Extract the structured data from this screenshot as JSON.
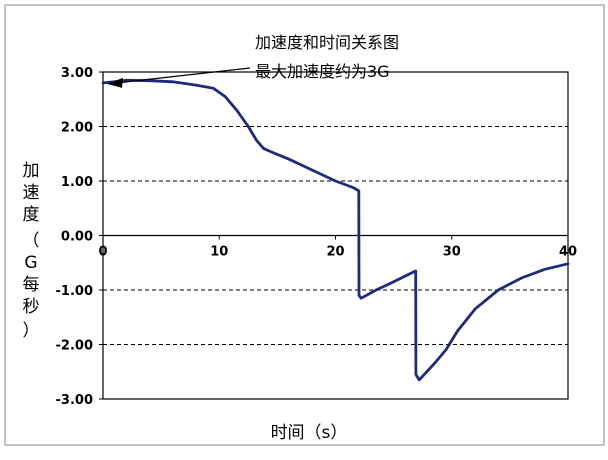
{
  "chart_data": {
    "type": "line",
    "title": "加速度和时间关系图",
    "annotations": [
      {
        "text": "最大加速度约为3G",
        "x": 0,
        "y": 2.8
      }
    ],
    "xlabel": "时间（s）",
    "ylabel_chars": [
      "加",
      "速",
      "度",
      "（",
      "G",
      "每",
      "秒",
      "）"
    ],
    "xlim": [
      0,
      40
    ],
    "ylim": [
      -3,
      3
    ],
    "xticks": [
      0,
      10,
      20,
      30,
      40
    ],
    "yticks": [
      3,
      2,
      1,
      0,
      -1,
      -2,
      -3
    ],
    "ytick_labels": [
      "3.00",
      "2.00",
      "1.00",
      "0.00",
      "-1.00",
      "-2.00",
      "-3.00"
    ],
    "gridlines": "horizontal-dashed",
    "legend": "none",
    "colors": {
      "line": "#1f2a7a",
      "grid": "#000000",
      "frame": "#000000"
    },
    "series": [
      {
        "x": [
          0,
          1,
          2,
          4,
          6,
          8,
          9.5,
          10.5,
          11.5,
          12.5,
          13.2,
          13.8,
          14.5,
          16,
          18,
          20,
          21.5,
          22,
          22.02,
          22.2,
          23.5,
          25,
          26.9,
          26.92,
          27.2,
          28.5,
          29.5,
          30.5,
          32,
          34,
          36,
          38,
          40
        ],
        "y": [
          2.8,
          2.82,
          2.85,
          2.84,
          2.82,
          2.76,
          2.7,
          2.55,
          2.3,
          2.0,
          1.75,
          1.6,
          1.53,
          1.4,
          1.2,
          1.0,
          0.88,
          0.82,
          -1.1,
          -1.15,
          -1.0,
          -0.85,
          -0.65,
          -2.55,
          -2.65,
          -2.35,
          -2.1,
          -1.75,
          -1.35,
          -1.0,
          -0.78,
          -0.62,
          -0.52
        ]
      }
    ]
  }
}
